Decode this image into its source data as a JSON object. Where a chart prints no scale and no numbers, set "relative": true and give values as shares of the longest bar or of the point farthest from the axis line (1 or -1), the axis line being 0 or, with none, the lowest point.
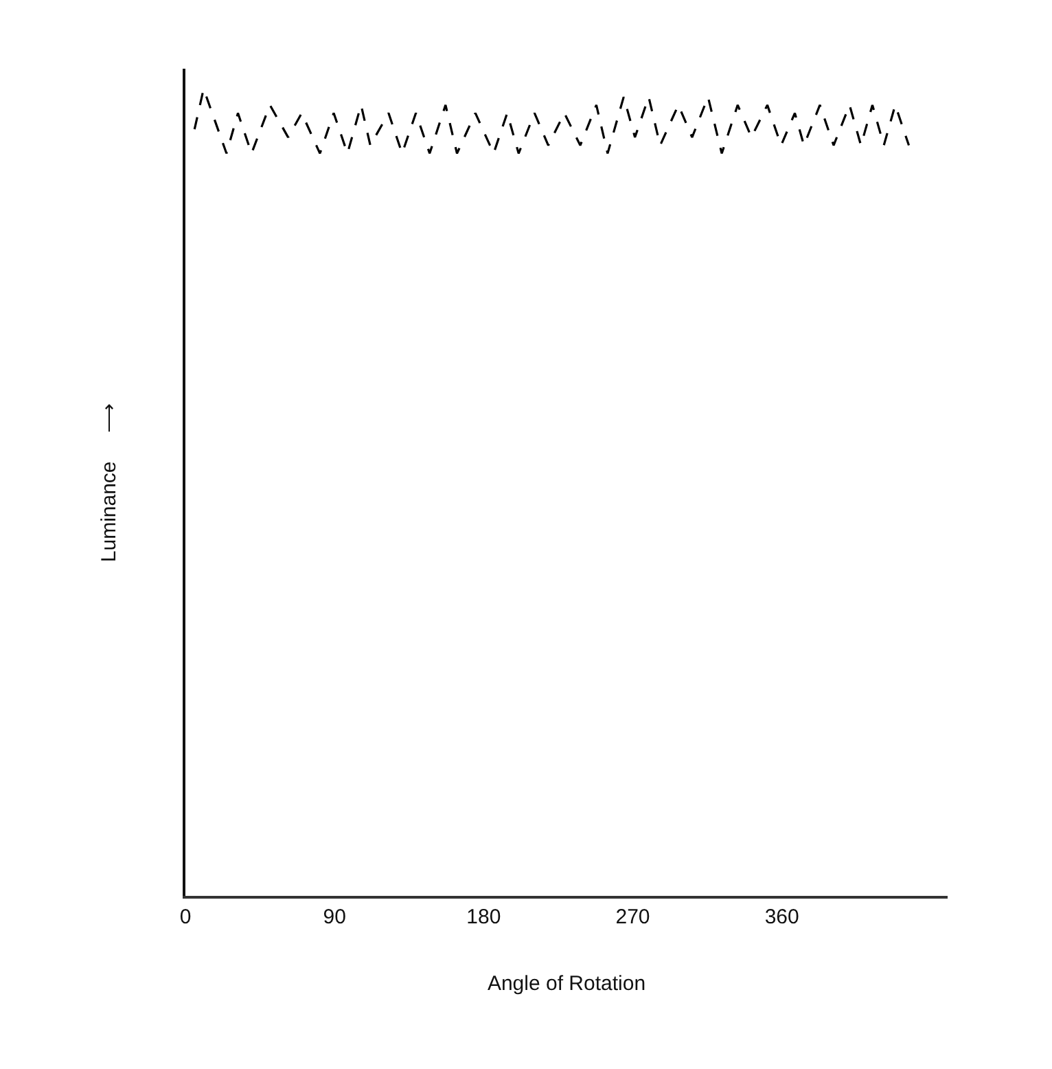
{
  "chart_data": {
    "type": "line",
    "xlabel": "Angle of Rotation",
    "ylabel": "Luminance     ⟶",
    "relative": true,
    "xlim": [
      0,
      460
    ],
    "xticks": [
      0,
      90,
      180,
      270,
      360
    ],
    "legend": false,
    "line_style": "dashed",
    "x": [
      5.5,
      11,
      24.8,
      31.7,
      39.9,
      51,
      62,
      70.2,
      81.2,
      89.5,
      97.8,
      106,
      111.6,
      122.6,
      130.8,
      139.1,
      147.4,
      157,
      163.9,
      175,
      186,
      194.2,
      201.1,
      210.7,
      219,
      228.7,
      238.3,
      248,
      254.8,
      264.5,
      271.3,
      279.6,
      286.5,
      297.5,
      305.8,
      315.4,
      323.7,
      333.3,
      341.6,
      351.2,
      359.5,
      367.8,
      373.3,
      382.9,
      391.2,
      400.8,
      407.7,
      414.6,
      421.5,
      428.4,
      436.6
    ],
    "series": [
      {
        "color": "#000000",
        "values": [
          0.95,
          1,
          0.92,
          0.97,
          0.92,
          0.98,
          0.94,
          0.97,
          0.92,
          0.97,
          0.92,
          0.98,
          0.93,
          0.97,
          0.92,
          0.97,
          0.92,
          0.98,
          0.92,
          0.97,
          0.92,
          0.97,
          0.92,
          0.97,
          0.93,
          0.97,
          0.93,
          0.98,
          0.92,
          0.99,
          0.94,
          0.99,
          0.93,
          0.98,
          0.94,
          0.99,
          0.92,
          0.98,
          0.94,
          0.98,
          0.93,
          0.97,
          0.93,
          0.98,
          0.93,
          0.98,
          0.93,
          0.98,
          0.93,
          0.98,
          0.93
        ]
      }
    ]
  }
}
